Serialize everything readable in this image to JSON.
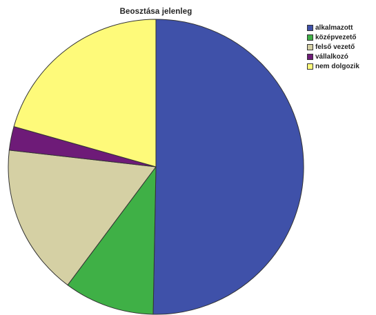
{
  "chart_data": {
    "type": "pie",
    "title": "Beosztása jelenleg",
    "categories": [
      "alkalmazott",
      "középvezető",
      "felső vezető",
      "vállalkozó",
      "nem dolgozik"
    ],
    "values": [
      50.3,
      9.9,
      16.6,
      2.6,
      20.6
    ],
    "colors": [
      "#3f51a9",
      "#3fb046",
      "#d5d0a4",
      "#6e1b78",
      "#fefa7a"
    ],
    "start_angle_deg": 0,
    "direction": "clockwise",
    "legend_position": "top-right",
    "slice_border_color": "#333333"
  }
}
